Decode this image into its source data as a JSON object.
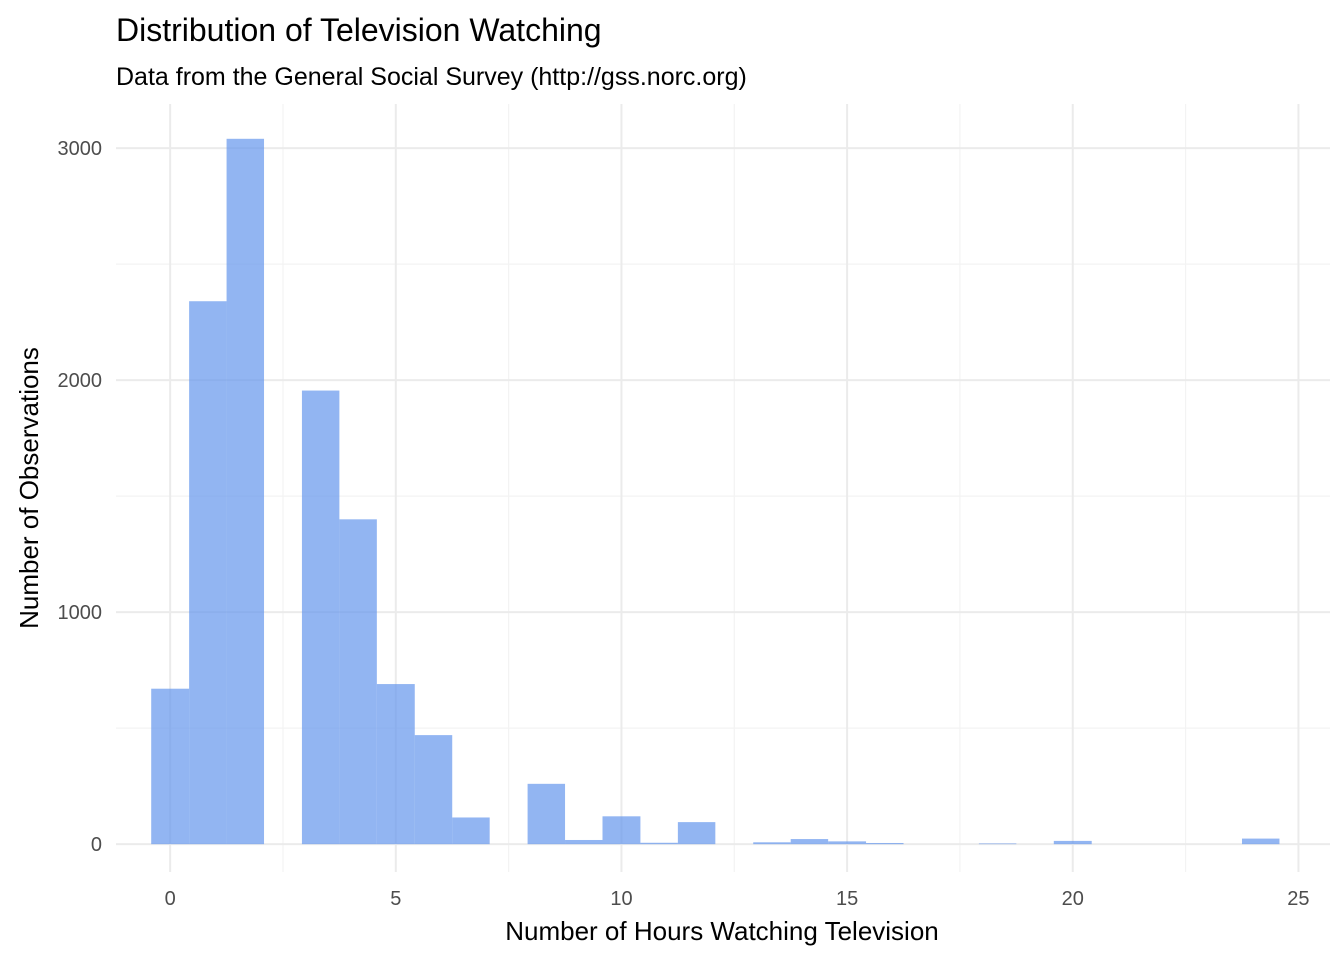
{
  "chart_data": {
    "type": "bar",
    "title": "Distribution of Television Watching",
    "subtitle": "Data from the General Social Survey (http://gss.norc.org)",
    "xlabel": "Number of Hours Watching Television",
    "ylabel": "Number of Observations",
    "xlim": [
      -1.2,
      25.7
    ],
    "ylim": [
      -120,
      3190
    ],
    "x_ticks": [
      0,
      5,
      10,
      15,
      20,
      25
    ],
    "y_ticks": [
      0,
      1000,
      2000,
      3000
    ],
    "grid": true,
    "bar_color": "#6495ED",
    "bar_opacity": 0.7,
    "bins": [
      {
        "x0": -0.42,
        "x1": 0.42,
        "count": 670
      },
      {
        "x0": 0.42,
        "x1": 1.25,
        "count": 2340
      },
      {
        "x0": 1.25,
        "x1": 2.08,
        "count": 3040
      },
      {
        "x0": 2.92,
        "x1": 3.75,
        "count": 1955
      },
      {
        "x0": 3.75,
        "x1": 4.58,
        "count": 1400
      },
      {
        "x0": 4.58,
        "x1": 5.42,
        "count": 690
      },
      {
        "x0": 5.42,
        "x1": 6.25,
        "count": 470
      },
      {
        "x0": 6.25,
        "x1": 7.08,
        "count": 115
      },
      {
        "x0": 7.92,
        "x1": 8.75,
        "count": 260
      },
      {
        "x0": 8.75,
        "x1": 9.58,
        "count": 18
      },
      {
        "x0": 9.58,
        "x1": 10.42,
        "count": 120
      },
      {
        "x0": 10.42,
        "x1": 11.25,
        "count": 6
      },
      {
        "x0": 11.25,
        "x1": 12.08,
        "count": 95
      },
      {
        "x0": 12.92,
        "x1": 13.75,
        "count": 8
      },
      {
        "x0": 13.75,
        "x1": 14.58,
        "count": 22
      },
      {
        "x0": 14.58,
        "x1": 15.42,
        "count": 12
      },
      {
        "x0": 15.42,
        "x1": 16.25,
        "count": 5
      },
      {
        "x0": 17.92,
        "x1": 18.75,
        "count": 3
      },
      {
        "x0": 19.58,
        "x1": 20.42,
        "count": 14
      },
      {
        "x0": 23.75,
        "x1": 24.58,
        "count": 24
      }
    ]
  }
}
